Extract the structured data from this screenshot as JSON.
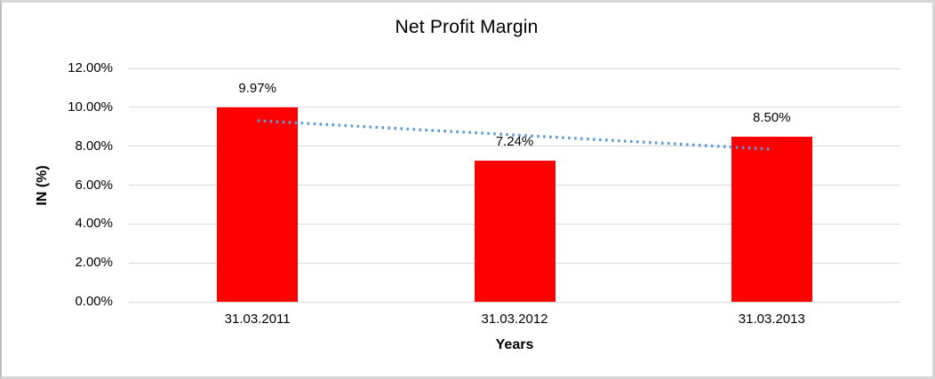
{
  "window": {
    "background": "#ffffff",
    "border_color": "#d6d6d6"
  },
  "chart_data": {
    "type": "bar",
    "title": "Net Profit Margin",
    "xlabel": "Years",
    "ylabel": "IN (%)",
    "categories": [
      "31.03.2011",
      "31.03.2012",
      "31.03.2013"
    ],
    "values": [
      9.97,
      7.24,
      8.5
    ],
    "value_labels": [
      "9.97%",
      "7.24%",
      "8.50%"
    ],
    "bar_color": "#ff0000",
    "ylim": [
      0,
      12
    ],
    "ytick_step": 2,
    "ytick_labels": [
      "0.00%",
      "2.00%",
      "4.00%",
      "6.00%",
      "8.00%",
      "10.00%",
      "12.00%"
    ],
    "grid": true,
    "gridline_color": "#d9d9d9",
    "legend": "none",
    "trendline": {
      "type": "linear",
      "style": "dotted",
      "color": "#5b9bd5",
      "start_value": 9.31,
      "end_value": 7.84
    }
  }
}
